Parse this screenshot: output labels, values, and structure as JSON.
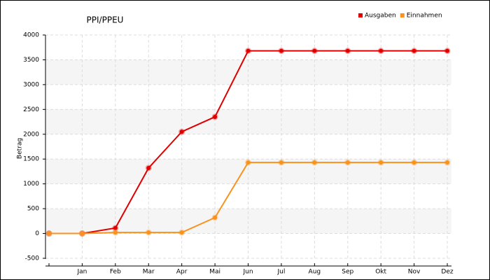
{
  "chart_data": {
    "type": "line",
    "title": "PPI/PPEU",
    "y_label": "Betrag",
    "categories": [
      null,
      "Jan",
      "Feb",
      "Mar",
      "Apr",
      "Mai",
      "Jun",
      "Jul",
      "Aug",
      "Sep",
      "Okt",
      "Nov",
      "Dez"
    ],
    "series": [
      {
        "name": "Ausgaben",
        "color": "#e00000",
        "values": [
          0,
          0,
          110,
          1320,
          2050,
          2350,
          3680,
          3680,
          3680,
          3680,
          3680,
          3680,
          3680
        ]
      },
      {
        "name": "Einnahmen",
        "color": "#f7931e",
        "values": [
          0,
          0,
          20,
          20,
          20,
          320,
          1430,
          1430,
          1430,
          1430,
          1430,
          1430,
          1430
        ]
      }
    ],
    "ylim": [
      -500,
      4000
    ],
    "yticks": [
      -500,
      0,
      500,
      1000,
      1500,
      2000,
      2500,
      3000,
      3500,
      4000
    ],
    "grid": true,
    "legend": "top-right"
  }
}
